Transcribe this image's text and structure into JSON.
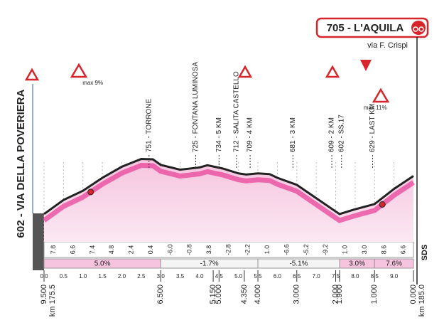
{
  "chart_data": {
    "type": "area",
    "finish_label": "705 - L'AQUILA",
    "finish_sublabel": "via F. Crispi",
    "start_label": "602 - VIA DELLA POVERIERA",
    "side_label": "SDS",
    "color": "#e8449a",
    "x": [
      0,
      0.5,
      1.0,
      1.5,
      2.0,
      2.5,
      2.8,
      3.0,
      3.5,
      4.0,
      4.2,
      4.6,
      5.0,
      5.2,
      5.5,
      5.8,
      6.0,
      6.5,
      7.0,
      7.5,
      7.6,
      8.0,
      8.5,
      9.0,
      9.5
    ],
    "values": [
      602,
      640,
      665,
      700,
      730,
      751,
      750,
      735,
      722,
      728,
      734,
      725,
      712,
      709,
      712,
      710,
      700,
      681,
      645,
      609,
      602,
      615,
      629,
      670,
      705
    ],
    "xlim": [
      0,
      9.5
    ],
    "ylim": [
      450,
      800
    ],
    "xticks": [
      {
        "value": 0,
        "label": "0.0"
      },
      0.5,
      {
        "value": 1,
        "label": "1.0"
      },
      1.5,
      {
        "value": 2,
        "label": "2.0"
      },
      2.5,
      {
        "value": 3,
        "label": "3.0"
      },
      3.5,
      {
        "value": 4,
        "label": "4.0"
      },
      4.5,
      {
        "value": 5,
        "label": "5.0"
      },
      5.5,
      {
        "value": 6,
        "label": "6.0"
      },
      6.5,
      {
        "value": 7,
        "label": "7.0"
      },
      7.5,
      {
        "value": 8,
        "label": "8.0"
      },
      8.5,
      {
        "value": 9,
        "label": "9.0"
      }
    ],
    "annotations": [
      {
        "text": "751 - TORRONE",
        "x": 2.7
      },
      {
        "text": "725 - FONTANA LUMINOSA",
        "x": 3.9
      },
      {
        "text": "734 - 5 KM",
        "x": 4.5
      },
      {
        "text": "712 - SALITA CASTELLO",
        "x": 4.95
      },
      {
        "text": "709 - 4 KM",
        "x": 5.3
      },
      {
        "text": "681 - 3 KM",
        "x": 6.4
      },
      {
        "text": "609 - 2 KM",
        "x": 7.4
      },
      {
        "text": "602 - SS.17",
        "x": 7.65
      },
      {
        "text": "629 - LAST KM",
        "x": 8.45
      }
    ],
    "climbs": [
      {
        "text": "max 9%",
        "x": 1.2
      },
      {
        "text": "max 11%",
        "x": 8.7
      }
    ],
    "segment_gradients": [
      "7.8",
      "6.6",
      "7.4",
      "4.8",
      "2.4",
      "0.4",
      "-6.0",
      "-0.8",
      "3.8",
      "-2.8",
      "-2.2",
      "1.0",
      "-6.6",
      "-5.2",
      "-9.2",
      "1.0",
      "3.0",
      "8.6",
      "6.6"
    ],
    "sections": [
      {
        "label": "5.0%",
        "from": 0,
        "to": 3.0,
        "value": 5.0
      },
      {
        "label": "-1.7%",
        "from": 3.0,
        "to": 5.5,
        "value": -1.7
      },
      {
        "label": "-5.1%",
        "from": 5.5,
        "to": 7.6,
        "value": -5.1
      },
      {
        "label": "3.0%",
        "from": 7.6,
        "to": 8.5,
        "value": 3.0
      },
      {
        "label": "7.6%",
        "from": 8.5,
        "to": 9.5,
        "value": 7.6
      }
    ],
    "distance_markers": [
      {
        "value": 9.5,
        "label": "9.500"
      },
      {
        "value": 6.5,
        "label": "6.500"
      },
      {
        "value": 5.15,
        "label": "5.150"
      },
      {
        "value": 5.0,
        "label": "5.000"
      },
      {
        "value": 4.35,
        "label": "4.350"
      },
      {
        "value": 4.0,
        "label": "4.000"
      },
      {
        "value": 3.0,
        "label": "3.000"
      },
      {
        "value": 2.0,
        "label": "2.000"
      },
      {
        "value": 1.9,
        "label": "1.900"
      },
      {
        "value": 1.0,
        "label": "1.000"
      },
      {
        "value": 0.0,
        "label": "0.000"
      }
    ],
    "start_km": "km 175.5",
    "finish_km": "km 185.0"
  }
}
